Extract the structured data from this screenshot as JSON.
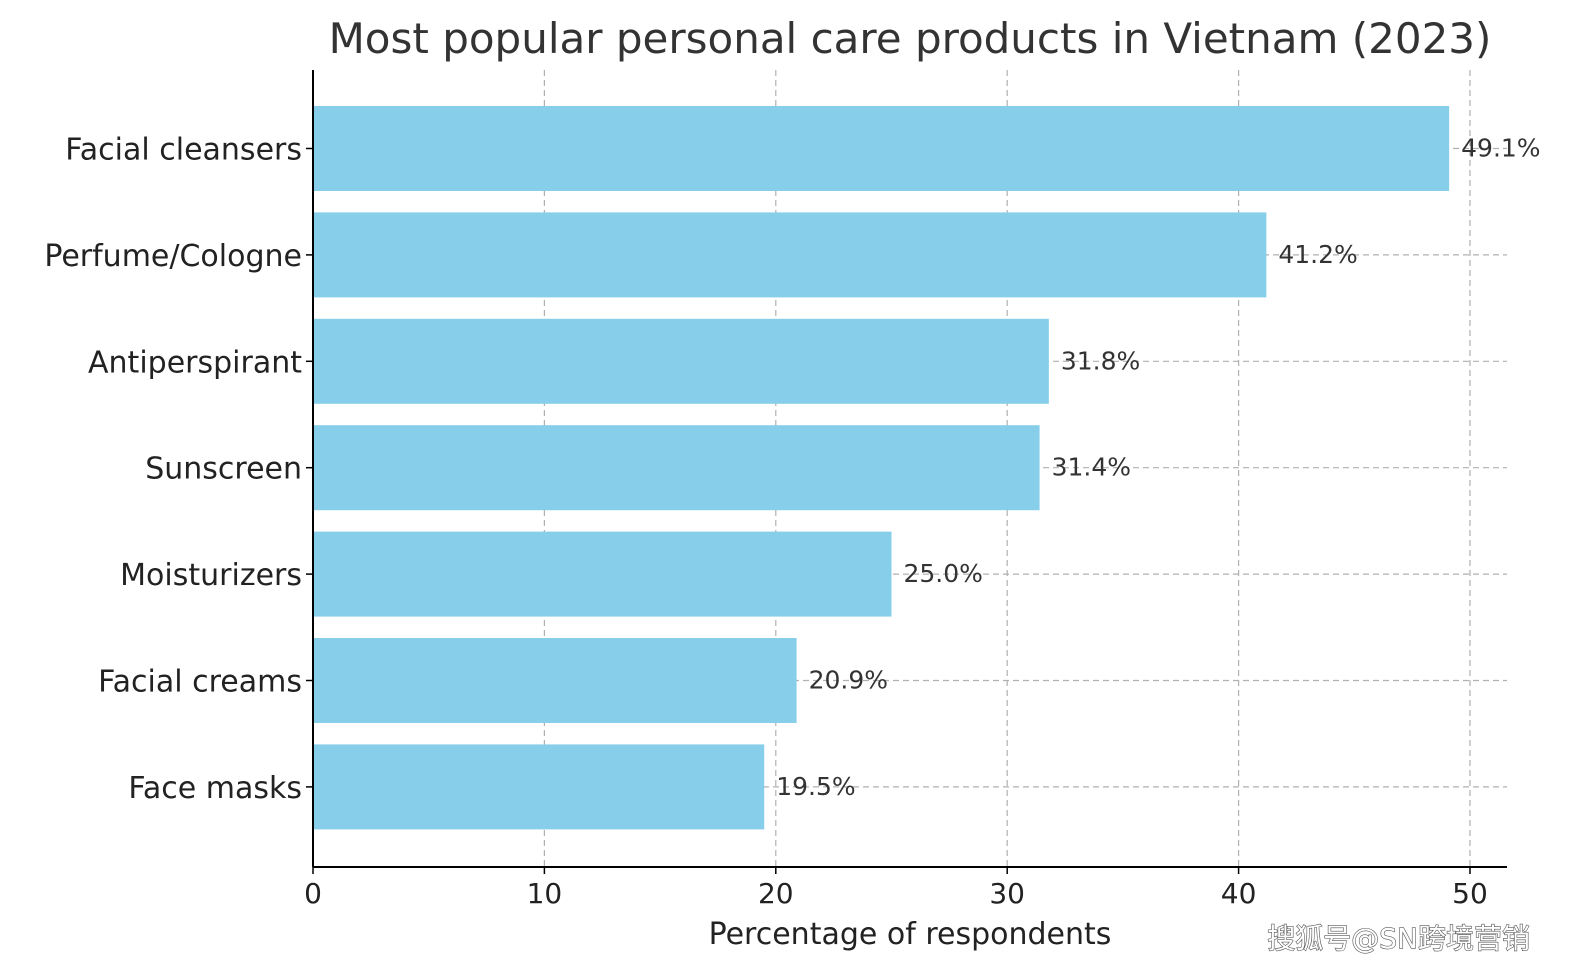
{
  "chart_data": {
    "type": "bar",
    "orientation": "horizontal",
    "title": "Most popular personal care products in Vietnam (2023)",
    "xlabel": "Percentage of respondents",
    "ylabel": "",
    "categories": [
      "Facial cleansers",
      "Perfume/Cologne",
      "Antiperspirant",
      "Sunscreen",
      "Moisturizers",
      "Facial creams",
      "Face masks"
    ],
    "values": [
      49.1,
      41.2,
      31.8,
      31.4,
      25.0,
      20.9,
      19.5
    ],
    "value_labels": [
      "49.1%",
      "41.2%",
      "31.8%",
      "31.4%",
      "25.0%",
      "20.9%",
      "19.5%"
    ],
    "xlim": [
      0,
      51.6
    ],
    "xticks": [
      0,
      10,
      20,
      30,
      40,
      50
    ],
    "grid": true,
    "colors": {
      "bar": "#87ceeb",
      "grid": "#b0b0b0",
      "axis": "#000000"
    }
  },
  "watermark": "搜狐号@SN跨境营销"
}
